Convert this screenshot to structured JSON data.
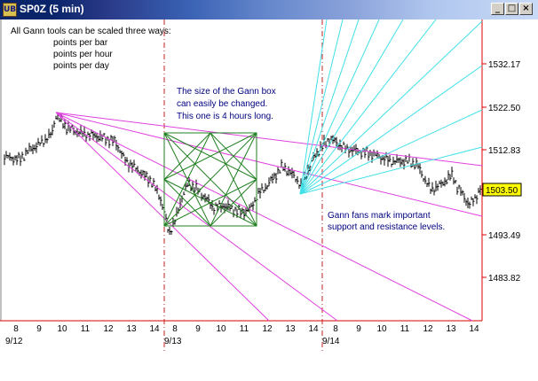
{
  "window": {
    "title": "SP0Z (5 min)",
    "app_icon_text": "UB",
    "buttons": {
      "minimize": "_",
      "maximize": "□",
      "close": "×"
    }
  },
  "annotations": {
    "scaling_intro": "All Gann tools can be scaled three ways:",
    "scaling_options": [
      "points per bar",
      "points per hour",
      "points per day"
    ],
    "box_note": [
      "The size of the Gann box",
      "can easily be changed.",
      "This one is 4 hours long."
    ],
    "fan_note": [
      "Gann fans mark important",
      "support and resistance levels."
    ]
  },
  "price_axis": {
    "ticks": [
      "1532.17",
      "1522.50",
      "1512.83",
      "1503.17",
      "1493.49",
      "1483.82"
    ],
    "current_price": "1503.50"
  },
  "time_axis": {
    "hours": [
      "8",
      "9",
      "10",
      "11",
      "12",
      "13",
      "14",
      "8",
      "9",
      "10",
      "11",
      "12",
      "13",
      "14",
      "8",
      "9",
      "10",
      "11",
      "12",
      "13",
      "14"
    ],
    "dates": [
      "9/12",
      "9/13",
      "9/14"
    ]
  },
  "colors": {
    "fan_magenta": "#e040e0",
    "fan_cyan": "#40e0e8",
    "gann_box": "#208020",
    "session_divider": "#c02020",
    "axis": "#e00000",
    "price_tag": "#ffff00"
  }
}
